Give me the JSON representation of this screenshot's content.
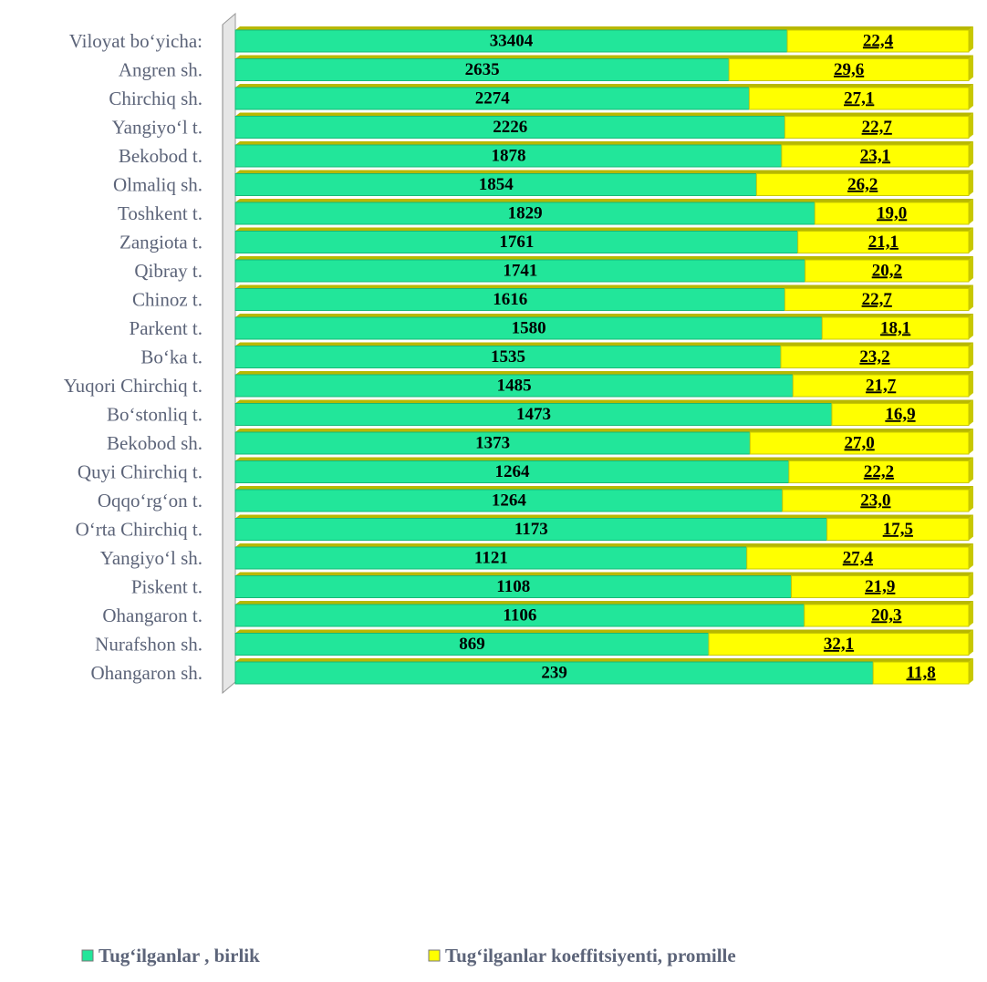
{
  "chart_data": {
    "type": "stacked-bar-horizontal",
    "categories": [
      "Viloyat bo‘yicha:",
      "Angren sh.",
      "Chirchiq sh.",
      "Yangiyo‘l t.",
      "Bekobod t.",
      "Olmaliq sh.",
      "Toshkent t.",
      "Zangiota t.",
      "Qibray t.",
      "Chinoz t.",
      "Parkent t.",
      "Bo‘ka t.",
      "Yuqori Chirchiq t.",
      "Bo‘stonliq t.",
      "Bekobod sh.",
      "Quyi Chirchiq t.",
      "Oqqo‘rg‘on t.",
      "O‘rta Chirchiq t.",
      "Yangiyo‘l sh.",
      "Piskent t.",
      "Ohangaron t.",
      "Nurafshon sh.",
      "Ohangaron sh."
    ],
    "series": [
      {
        "name": "Tug‘ilganlar , birlik",
        "color": "#22e69a",
        "values": [
          33404,
          2635,
          2274,
          2226,
          1878,
          1854,
          1829,
          1761,
          1741,
          1616,
          1580,
          1535,
          1485,
          1473,
          1373,
          1264,
          1264,
          1173,
          1121,
          1108,
          1106,
          869,
          239
        ]
      },
      {
        "name": "Tug‘ilganlar koeffitsiyenti, promille",
        "color": "#ffff00",
        "values": [
          22.4,
          29.6,
          27.1,
          22.7,
          23.1,
          26.2,
          19.0,
          21.1,
          20.2,
          22.7,
          18.1,
          23.2,
          21.7,
          16.9,
          27.0,
          22.2,
          23.0,
          17.5,
          27.4,
          21.9,
          20.3,
          32.1,
          11.8
        ],
        "value_labels": [
          "22,4",
          "29,6",
          "27,1",
          "22,7",
          "23,1",
          "26,2",
          "19,0",
          "21,1",
          "20,2",
          "22,7",
          "18,1",
          "23,2",
          "21,7",
          "16,9",
          "27,0",
          "22,2",
          "23,0",
          "17,5",
          "27,4",
          "21,9",
          "20,3",
          "32,1",
          "11,8"
        ]
      }
    ],
    "legend": "bottom"
  }
}
